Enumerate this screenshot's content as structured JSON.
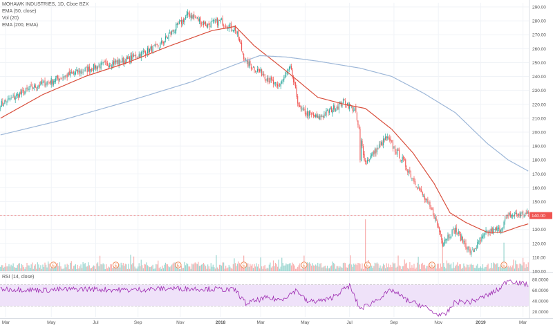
{
  "legend": {
    "line1": "MOHAWK INDUSTRIES, 1D, Cboe BZX",
    "line2": "EMA (50, close)",
    "line3": "Vol (20)",
    "line4": "EMA (200, EMA)"
  },
  "rsi_label": "RSI (14, close)",
  "last_price_label": "140.00",
  "colors": {
    "up": "#26a69a",
    "down": "#ef5350",
    "ema50": "#d94f3d",
    "ema200": "#9db7d8",
    "rsi_line": "#9c27b0",
    "rsi_band": "#efe2f9",
    "price_line": "#ef5350",
    "earnings": "#ef8a5a"
  },
  "chart_data": [
    {
      "type": "candlestick",
      "title": "MOHAWK INDUSTRIES, 1D, Cboe BZX",
      "ylim": [
        100,
        293
      ],
      "y_ticks": [
        "100.00",
        "110.00",
        "120.00",
        "130.00",
        "140.00",
        "150.00",
        "160.00",
        "170.00",
        "180.00",
        "190.00",
        "200.00",
        "210.00",
        "220.00",
        "230.00",
        "240.00",
        "250.00",
        "260.00",
        "270.00",
        "280.00",
        "290.00"
      ],
      "x_ticks": [
        "Mar",
        "May",
        "Jul",
        "Sep",
        "Nov",
        "2018",
        "Mar",
        "May",
        "Jul",
        "Sep",
        "Nov",
        "2019",
        "Mar"
      ],
      "x_tick_index": [
        5,
        48,
        90,
        130,
        170,
        208,
        246,
        288,
        330,
        372,
        414,
        454,
        494
      ],
      "n_days": 500,
      "price_anchors": [
        [
          0,
          220
        ],
        [
          30,
          232
        ],
        [
          60,
          240
        ],
        [
          90,
          247
        ],
        [
          120,
          252
        ],
        [
          150,
          262
        ],
        [
          178,
          285
        ],
        [
          195,
          277
        ],
        [
          208,
          280
        ],
        [
          222,
          274
        ],
        [
          232,
          250
        ],
        [
          248,
          242
        ],
        [
          262,
          232
        ],
        [
          274,
          246
        ],
        [
          283,
          216
        ],
        [
          300,
          210
        ],
        [
          325,
          222
        ],
        [
          335,
          216
        ],
        [
          345,
          178
        ],
        [
          365,
          196
        ],
        [
          380,
          180
        ],
        [
          395,
          160
        ],
        [
          410,
          140
        ],
        [
          418,
          122
        ],
        [
          430,
          130
        ],
        [
          445,
          113
        ],
        [
          460,
          128
        ],
        [
          472,
          130
        ],
        [
          480,
          140
        ],
        [
          490,
          141
        ]
      ],
      "gaps": [
        [
          340,
          180
        ],
        [
          418,
          118
        ],
        [
          480,
          140
        ]
      ],
      "last_price": 140.0,
      "series": [
        {
          "name": "EMA (50, close)",
          "anchors": [
            [
              0,
              210
            ],
            [
              40,
              227
            ],
            [
              80,
              240
            ],
            [
              120,
              250
            ],
            [
              160,
              262
            ],
            [
              200,
              273
            ],
            [
              222,
              276
            ],
            [
              240,
              262
            ],
            [
              270,
              244
            ],
            [
              300,
              225
            ],
            [
              325,
              220
            ],
            [
              345,
              217
            ],
            [
              370,
              202
            ],
            [
              390,
              185
            ],
            [
              410,
              163
            ],
            [
              425,
              142
            ],
            [
              440,
              135
            ],
            [
              460,
              128
            ],
            [
              475,
              128
            ],
            [
              490,
              132
            ],
            [
              499,
              134
            ]
          ]
        },
        {
          "name": "EMA (200, EMA)",
          "anchors": [
            [
              0,
              198
            ],
            [
              60,
              209
            ],
            [
              120,
              222
            ],
            [
              180,
              236
            ],
            [
              220,
              248
            ],
            [
              245,
              255
            ],
            [
              270,
              254
            ],
            [
              300,
              251
            ],
            [
              340,
              246
            ],
            [
              370,
              240
            ],
            [
              400,
              228
            ],
            [
              430,
              214
            ],
            [
              460,
              192
            ],
            [
              480,
              180
            ],
            [
              499,
              172
            ]
          ]
        }
      ],
      "earnings_markers": [
        50,
        109,
        168,
        230,
        287,
        347,
        408,
        476
      ]
    },
    {
      "type": "bar",
      "title": "Vol (20)",
      "values_note": "daily volume bars; spikes at earnings",
      "spikes": [
        [
          345,
          1.0
        ],
        [
          287,
          0.3
        ],
        [
          418,
          0.6
        ],
        [
          476,
          0.55
        ],
        [
          230,
          0.3
        ]
      ]
    },
    {
      "type": "line",
      "title": "RSI (14, close)",
      "ylim": [
        10,
        90
      ],
      "y_ticks": [
        "20.0000",
        "40.0000",
        "60.0000",
        "80.0000"
      ],
      "band": [
        30,
        70
      ],
      "anchors": [
        [
          0,
          62
        ],
        [
          40,
          60
        ],
        [
          80,
          62
        ],
        [
          120,
          60
        ],
        [
          160,
          63
        ],
        [
          200,
          62
        ],
        [
          222,
          60
        ],
        [
          232,
          35
        ],
        [
          250,
          45
        ],
        [
          265,
          42
        ],
        [
          280,
          60
        ],
        [
          290,
          38
        ],
        [
          310,
          42
        ],
        [
          330,
          68
        ],
        [
          340,
          25
        ],
        [
          350,
          35
        ],
        [
          370,
          60
        ],
        [
          385,
          40
        ],
        [
          400,
          30
        ],
        [
          412,
          15
        ],
        [
          420,
          12
        ],
        [
          430,
          38
        ],
        [
          445,
          38
        ],
        [
          460,
          50
        ],
        [
          472,
          62
        ],
        [
          480,
          80
        ],
        [
          490,
          73
        ],
        [
          499,
          70
        ]
      ]
    }
  ]
}
